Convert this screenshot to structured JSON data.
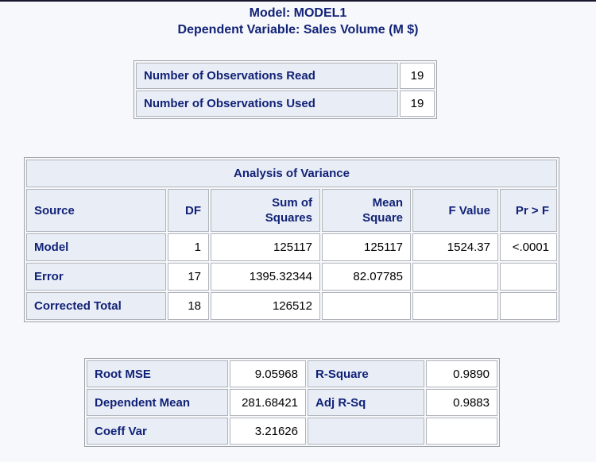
{
  "page": {
    "title_line1": "Model: MODEL1",
    "title_line2": "Dependent Variable: Sales Volume (M $)"
  },
  "colors": {
    "navy_text": "#112277",
    "header_cell_bg": "#e9edf6",
    "cell_border": "#b0b4ba",
    "page_bg": "#f7f8fb",
    "top_edge_line": "#17172e"
  },
  "observations_table": {
    "rows": [
      {
        "label": "Number of Observations Read",
        "value": "19"
      },
      {
        "label": "Number of Observations Used",
        "value": "19"
      }
    ]
  },
  "anova_table": {
    "title": "Analysis of Variance",
    "headers": {
      "source": "Source",
      "df": "DF",
      "sum_of_squares": "Sum of\nSquares",
      "mean_square": "Mean\nSquare",
      "f_value": "F Value",
      "pr_f": "Pr > F"
    },
    "rows": [
      {
        "source": "Model",
        "df": "1",
        "sum_of_squares": "125117",
        "mean_square": "125117",
        "f_value": "1524.37",
        "pr_f": "<.0001"
      },
      {
        "source": "Error",
        "df": "17",
        "sum_of_squares": "1395.32344",
        "mean_square": "82.07785",
        "f_value": "",
        "pr_f": ""
      },
      {
        "source": "Corrected Total",
        "df": "18",
        "sum_of_squares": "126512",
        "mean_square": "",
        "f_value": "",
        "pr_f": ""
      }
    ]
  },
  "fit_table": {
    "rows": [
      {
        "label1": "Root MSE",
        "value1": "9.05968",
        "label2": "R-Square",
        "value2": "0.9890"
      },
      {
        "label1": "Dependent Mean",
        "value1": "281.68421",
        "label2": "Adj R-Sq",
        "value2": "0.9883"
      },
      {
        "label1": "Coeff Var",
        "value1": "3.21626",
        "label2": "",
        "value2": ""
      }
    ]
  }
}
